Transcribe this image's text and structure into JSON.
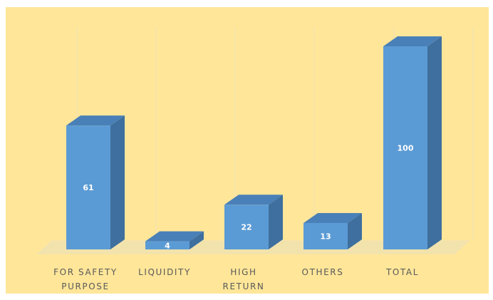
{
  "chart_data": {
    "type": "bar",
    "categories": [
      [
        "FOR SAFETY",
        "PURPOSE"
      ],
      [
        "LIQUIDITY"
      ],
      [
        "HIGH",
        "RETURN"
      ],
      [
        "OTHERS"
      ],
      [
        "TOTAL"
      ]
    ],
    "values": [
      61,
      4,
      22,
      13,
      100
    ],
    "data_labels": [
      "61",
      "4",
      "22",
      "13",
      "100"
    ],
    "ylim": [
      0,
      100
    ],
    "gridlines": "vertical",
    "legend": "none",
    "colors": {
      "background": "#ffe699",
      "bar_front": "#5b9bd5",
      "bar_side": "#3e6f9e",
      "bar_top": "#4a80b8",
      "gridline": "#efe2b4",
      "floor": "#f2e3ad"
    }
  }
}
